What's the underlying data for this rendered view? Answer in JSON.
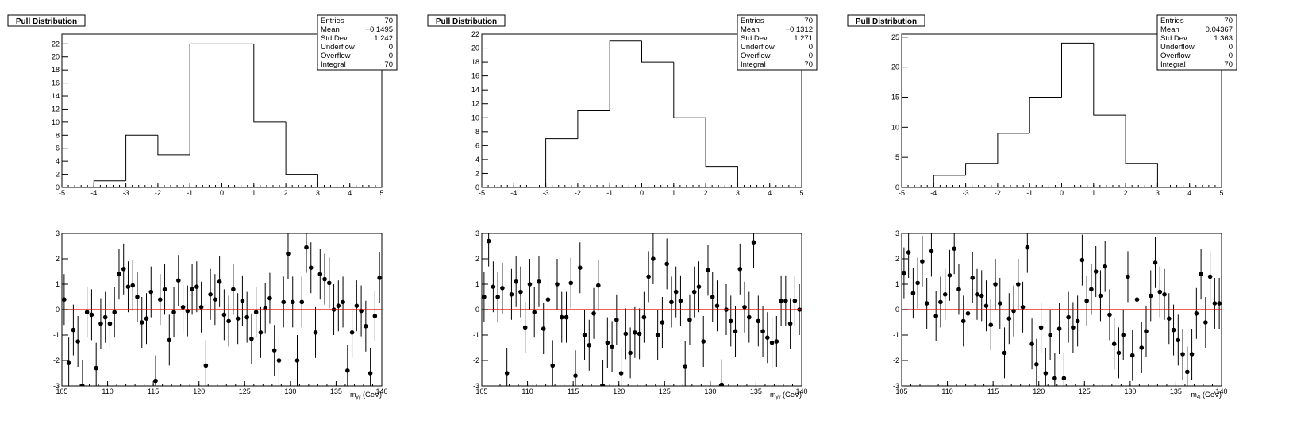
{
  "panels": [
    {
      "title": "Pull Distribution",
      "stats": [
        {
          "label": "Entries",
          "value": "70"
        },
        {
          "label": "Mean",
          "value": "−0.1495"
        },
        {
          "label": "Std Dev",
          "value": "1.242"
        },
        {
          "label": "Underflow",
          "value": "0"
        },
        {
          "label": "Overflow",
          "value": "0"
        },
        {
          "label": "Integral",
          "value": "70"
        }
      ],
      "xlabel_main": "m",
      "xlabel_sub": "γγ",
      "xlabel_unit": " (GeV)"
    },
    {
      "title": "Pull Distribution",
      "stats": [
        {
          "label": "Entries",
          "value": "70"
        },
        {
          "label": "Mean",
          "value": "−0.1312"
        },
        {
          "label": "Std Dev",
          "value": "1.271"
        },
        {
          "label": "Underflow",
          "value": "0"
        },
        {
          "label": "Overflow",
          "value": "0"
        },
        {
          "label": "Integral",
          "value": "70"
        }
      ],
      "xlabel_main": "m",
      "xlabel_sub": "γγ",
      "xlabel_unit": " (GeV)"
    },
    {
      "title": "Pull Distribution",
      "stats": [
        {
          "label": "Entries",
          "value": "70"
        },
        {
          "label": "Mean",
          "value": "0.04367"
        },
        {
          "label": "Std Dev",
          "value": "1.363"
        },
        {
          "label": "Underflow",
          "value": "0"
        },
        {
          "label": "Overflow",
          "value": "0"
        },
        {
          "label": "Integral",
          "value": "70"
        }
      ],
      "xlabel_main": "m",
      "xlabel_sub": "4l",
      "xlabel_unit": " (GeV)"
    }
  ],
  "colors": {
    "line": "#000000",
    "zero_line": "#e00000",
    "marker": "#000000"
  },
  "chart_data": [
    {
      "type": "bar",
      "subtype": "step-histogram",
      "title": "Pull Distribution",
      "bin_edges": [
        -5,
        -4,
        -3,
        -2,
        -1,
        0,
        1,
        2,
        3,
        4,
        5
      ],
      "values": [
        0,
        1,
        8,
        5,
        22,
        22,
        10,
        2,
        0,
        0
      ],
      "xlim": [
        -5,
        5
      ],
      "ylim": [
        0,
        23.5
      ],
      "yticks": [
        0,
        2,
        4,
        6,
        8,
        10,
        12,
        14,
        16,
        18,
        20,
        22
      ],
      "xticks": [
        -5,
        -4,
        -3,
        -2,
        -1,
        0,
        1,
        2,
        3,
        4,
        5
      ]
    },
    {
      "type": "bar",
      "subtype": "step-histogram",
      "title": "Pull Distribution",
      "bin_edges": [
        -5,
        -4,
        -3,
        -2,
        -1,
        0,
        1,
        2,
        3,
        4,
        5
      ],
      "values": [
        0,
        0,
        7,
        11,
        21,
        18,
        10,
        3,
        0,
        0
      ],
      "xlim": [
        -5,
        5
      ],
      "ylim": [
        0,
        22
      ],
      "yticks": [
        0,
        2,
        4,
        6,
        8,
        10,
        12,
        14,
        16,
        18,
        20,
        22
      ],
      "xticks": [
        -5,
        -4,
        -3,
        -2,
        -1,
        0,
        1,
        2,
        3,
        4,
        5
      ]
    },
    {
      "type": "bar",
      "subtype": "step-histogram",
      "title": "Pull Distribution",
      "bin_edges": [
        -5,
        -4,
        -3,
        -2,
        -1,
        0,
        1,
        2,
        3,
        4,
        5
      ],
      "values": [
        0,
        2,
        4,
        9,
        15,
        24,
        12,
        4,
        0,
        0
      ],
      "xlim": [
        -5,
        5
      ],
      "ylim": [
        0,
        25.5
      ],
      "yticks": [
        0,
        5,
        10,
        15,
        20,
        25
      ],
      "xticks": [
        -5,
        -4,
        -3,
        -2,
        -1,
        0,
        1,
        2,
        3,
        4,
        5
      ]
    },
    {
      "type": "scatter",
      "subtype": "points-with-error-bars",
      "xlim": [
        105,
        140
      ],
      "ylim": [
        -3,
        3
      ],
      "xticks": [
        105,
        110,
        115,
        120,
        125,
        130,
        135,
        140
      ],
      "yticks": [
        -3,
        -2,
        -1,
        0,
        1,
        2,
        3
      ],
      "reference_line_y": 0,
      "x": [
        105.25,
        105.75,
        106.25,
        106.75,
        107.25,
        107.75,
        108.25,
        108.75,
        109.25,
        109.75,
        110.25,
        110.75,
        111.25,
        111.75,
        112.25,
        112.75,
        113.25,
        113.75,
        114.25,
        114.75,
        115.25,
        115.75,
        116.25,
        116.75,
        117.25,
        117.75,
        118.25,
        118.75,
        119.25,
        119.75,
        120.25,
        120.75,
        121.25,
        121.75,
        122.25,
        122.75,
        123.25,
        123.75,
        124.25,
        124.75,
        125.25,
        125.75,
        126.25,
        126.75,
        127.25,
        127.75,
        128.25,
        128.75,
        129.25,
        129.75,
        130.25,
        130.75,
        131.25,
        131.75,
        132.25,
        132.75,
        133.25,
        133.75,
        134.25,
        134.75,
        135.25,
        135.75,
        136.25,
        136.75,
        137.25,
        137.75,
        138.25,
        138.75,
        139.25,
        139.75
      ],
      "y": [
        0.4,
        -2.1,
        -0.8,
        -1.25,
        -3.0,
        -0.1,
        -0.2,
        -2.3,
        -0.55,
        -0.3,
        -0.55,
        -0.1,
        1.4,
        1.6,
        0.9,
        0.95,
        0.5,
        -0.5,
        -0.35,
        0.7,
        -2.8,
        0.4,
        0.8,
        -1.2,
        -0.1,
        1.15,
        0.1,
        -0.05,
        0.8,
        0.9,
        0.1,
        -2.2,
        0.6,
        0.4,
        1.1,
        -0.2,
        -0.45,
        0.8,
        -0.35,
        0.35,
        -0.3,
        -1.15,
        -0.1,
        -0.9,
        0.05,
        0.45,
        -1.6,
        -2.0,
        0.3,
        2.2,
        0.3,
        -2.0,
        0.3,
        2.45,
        1.65,
        -0.9,
        1.4,
        1.2,
        1.05,
        0.0,
        0.15,
        0.3,
        -2.4,
        -0.9,
        0.15,
        -0.05,
        -0.65,
        -2.5,
        -0.25,
        1.25
      ],
      "yerr": 1.0
    },
    {
      "type": "scatter",
      "subtype": "points-with-error-bars",
      "xlim": [
        105,
        140
      ],
      "ylim": [
        -3,
        3
      ],
      "xticks": [
        105,
        110,
        115,
        120,
        125,
        130,
        135,
        140
      ],
      "yticks": [
        -3,
        -2,
        -1,
        0,
        1,
        2,
        3
      ],
      "reference_line_y": 0,
      "x": [
        105.25,
        105.75,
        106.25,
        106.75,
        107.25,
        107.75,
        108.25,
        108.75,
        109.25,
        109.75,
        110.25,
        110.75,
        111.25,
        111.75,
        112.25,
        112.75,
        113.25,
        113.75,
        114.25,
        114.75,
        115.25,
        115.75,
        116.25,
        116.75,
        117.25,
        117.75,
        118.25,
        118.75,
        119.25,
        119.75,
        120.25,
        120.75,
        121.25,
        121.75,
        122.25,
        122.75,
        123.25,
        123.75,
        124.25,
        124.75,
        125.25,
        125.75,
        126.25,
        126.75,
        127.25,
        127.75,
        128.25,
        128.75,
        129.25,
        129.75,
        130.25,
        130.75,
        131.25,
        131.75,
        132.25,
        132.75,
        133.25,
        133.75,
        134.25,
        134.75,
        135.25,
        135.75,
        136.25,
        136.75,
        137.25,
        137.75,
        138.25,
        138.75,
        139.25,
        139.75
      ],
      "y": [
        0.5,
        2.7,
        0.9,
        0.5,
        0.85,
        -2.5,
        0.6,
        1.1,
        0.7,
        -0.7,
        1.0,
        -0.1,
        1.1,
        -0.75,
        0.4,
        -2.2,
        1.0,
        -0.3,
        -0.3,
        1.05,
        -2.6,
        1.65,
        -1.0,
        -1.4,
        -0.15,
        0.95,
        -3.0,
        -1.3,
        -1.45,
        -0.4,
        -2.5,
        -0.95,
        -1.7,
        -0.9,
        -0.95,
        -0.3,
        1.3,
        2.0,
        -1.0,
        -0.5,
        1.8,
        0.3,
        0.7,
        0.35,
        -2.25,
        -0.4,
        0.7,
        0.9,
        -1.25,
        1.55,
        0.5,
        0.15,
        -2.95,
        0.0,
        -0.45,
        -0.85,
        1.6,
        0.1,
        -0.3,
        2.65,
        -0.45,
        -0.85,
        -1.1,
        -1.3,
        -1.25,
        0.35,
        0.35,
        -0.55,
        0.35,
        0.0
      ],
      "yerr": 1.0
    },
    {
      "type": "scatter",
      "subtype": "points-with-error-bars",
      "xlim": [
        105,
        140
      ],
      "ylim": [
        -3,
        3
      ],
      "xticks": [
        105,
        110,
        115,
        120,
        125,
        130,
        135,
        140
      ],
      "yticks": [
        -3,
        -2,
        -1,
        0,
        1,
        2,
        3
      ],
      "reference_line_y": 0,
      "x": [
        105.25,
        105.75,
        106.25,
        106.75,
        107.25,
        107.75,
        108.25,
        108.75,
        109.25,
        109.75,
        110.25,
        110.75,
        111.25,
        111.75,
        112.25,
        112.75,
        113.25,
        113.75,
        114.25,
        114.75,
        115.25,
        115.75,
        116.25,
        116.75,
        117.25,
        117.75,
        118.25,
        118.75,
        119.25,
        119.75,
        120.25,
        120.75,
        121.25,
        121.75,
        122.25,
        122.75,
        123.25,
        123.75,
        124.25,
        124.75,
        125.25,
        125.75,
        126.25,
        126.75,
        127.25,
        127.75,
        128.25,
        128.75,
        129.25,
        129.75,
        130.25,
        130.75,
        131.25,
        131.75,
        132.25,
        132.75,
        133.25,
        133.75,
        134.25,
        134.75,
        135.25,
        135.75,
        136.25,
        136.75,
        137.25,
        137.75,
        138.25,
        138.75,
        139.25,
        139.75
      ],
      "y": [
        1.45,
        2.25,
        0.65,
        1.05,
        1.9,
        0.25,
        2.3,
        -0.25,
        0.3,
        0.6,
        1.35,
        2.4,
        0.8,
        -0.45,
        -0.15,
        1.25,
        0.6,
        0.55,
        0.15,
        -0.6,
        1.0,
        0.25,
        -1.7,
        -0.35,
        -0.05,
        1.0,
        0.1,
        2.45,
        -1.35,
        -2.15,
        -0.7,
        -2.5,
        -1.0,
        -2.7,
        -0.75,
        -2.7,
        -0.3,
        -0.7,
        -0.45,
        1.95,
        0.35,
        0.8,
        1.5,
        0.55,
        1.7,
        -0.2,
        -1.35,
        -1.7,
        -1.0,
        1.3,
        -1.8,
        0.4,
        -1.5,
        -0.85,
        0.55,
        1.85,
        0.7,
        0.6,
        -0.35,
        -0.8,
        -1.2,
        -1.75,
        -2.45,
        -1.75,
        -0.15,
        1.4,
        -0.5,
        1.3,
        0.25,
        0.25
      ],
      "yerr": 1.0
    }
  ]
}
